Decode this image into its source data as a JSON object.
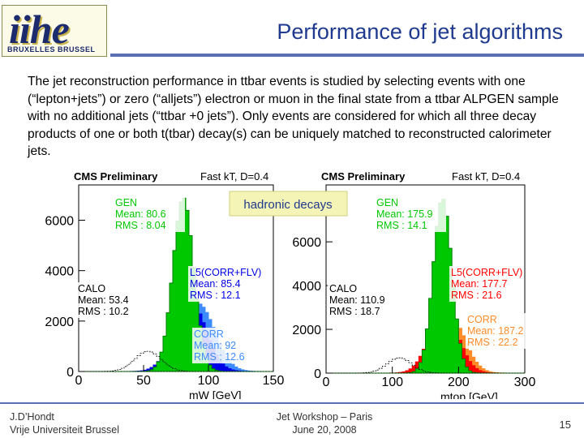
{
  "logo": {
    "word": "iihe",
    "sub": "BRUXELLES BRUSSEL"
  },
  "title": "Performance of jet algorithms",
  "intro": "The jet reconstruction performance in ttbar events is studied by selecting events with one (“lepton+jets”) or zero (“alljets”) electron or muon in the final state from a ttbar ALPGEN sample with no additional jets (“ttbar +0 jets”). Only events are considered for which all three decay products of one or both t(tbar) decay(s) can be uniquely matched to reconstructed calorimeter jets.",
  "callout": "hadronic decays",
  "footer": {
    "author": "J.D’Hondt",
    "affiliation": "Vrije Universiteit Brussel",
    "event": "Jet Workshop – Paris",
    "date": "June 20, 2008",
    "page": "15"
  },
  "colors": {
    "title": "#1f3a8f",
    "rule": "#5a6fb4",
    "gen": "#00c800",
    "corr_flv_w": "#0000e6",
    "corr_w": "#3c8cff",
    "corr_flv_t": "#ff0000",
    "corr_t": "#ff8c28",
    "calo": "#000000"
  },
  "chart_data": [
    {
      "type": "area",
      "header": "CMS Preliminary",
      "algo": "Fast kT, D=0.4",
      "xlabel": "mW [GeV]",
      "xlim": [
        0,
        150
      ],
      "ylim": [
        0,
        7400
      ],
      "xticks": [
        0,
        50,
        100,
        150
      ],
      "yticks": [
        0,
        2000,
        4000,
        6000
      ],
      "series": [
        {
          "name": "GEN",
          "mean": 80.6,
          "rms": 8.04,
          "peak": 6900
        },
        {
          "name": "CALO",
          "mean": 53.4,
          "rms": 10.2,
          "peak": 800
        },
        {
          "name": "L5(CORR+FLV)",
          "mean": 85.4,
          "rms": 12.1,
          "peak": 2900
        },
        {
          "name": "CORR",
          "mean": 92,
          "rms": 12.6,
          "peak": 2700
        }
      ],
      "stats": [
        {
          "name": "GEN",
          "mean": "Mean: 80.6",
          "rms": "RMS : 8.04"
        },
        {
          "name": "L5(CORR+FLV)",
          "mean": "Mean: 85.4",
          "rms": "RMS : 12.1"
        },
        {
          "name": "CALO",
          "mean": "Mean: 53.4",
          "rms": "RMS : 10.2"
        },
        {
          "name": "CORR",
          "mean": "Mean: 92",
          "rms": "RMS : 12.6"
        }
      ]
    },
    {
      "type": "area",
      "header": "CMS Preliminary",
      "algo": "Fast kT, D=0.4",
      "xlabel": "mtop [GeV]",
      "xlim": [
        0,
        300
      ],
      "ylim": [
        0,
        8600
      ],
      "xticks": [
        0,
        100,
        200,
        300
      ],
      "yticks": [
        0,
        2000,
        4000,
        6000
      ],
      "series": [
        {
          "name": "GEN",
          "mean": 175.9,
          "rms": 14.1,
          "peak": 8000
        },
        {
          "name": "CALO",
          "mean": 110.9,
          "rms": 18.7,
          "peak": 700
        },
        {
          "name": "L5(CORR+FLV)",
          "mean": 177.7,
          "rms": 21.6,
          "peak": 2900
        },
        {
          "name": "CORR",
          "mean": 187.2,
          "rms": 22.2,
          "peak": 2600
        }
      ],
      "stats": [
        {
          "name": "GEN",
          "mean": "Mean: 175.9",
          "rms": "RMS : 14.1"
        },
        {
          "name": "L5(CORR+FLV)",
          "mean": "Mean: 177.7",
          "rms": "RMS : 21.6"
        },
        {
          "name": "CALO",
          "mean": "Mean: 110.9",
          "rms": "RMS : 18.7"
        },
        {
          "name": "CORR",
          "mean": "Mean: 187.2",
          "rms": "RMS : 22.2"
        }
      ]
    }
  ]
}
